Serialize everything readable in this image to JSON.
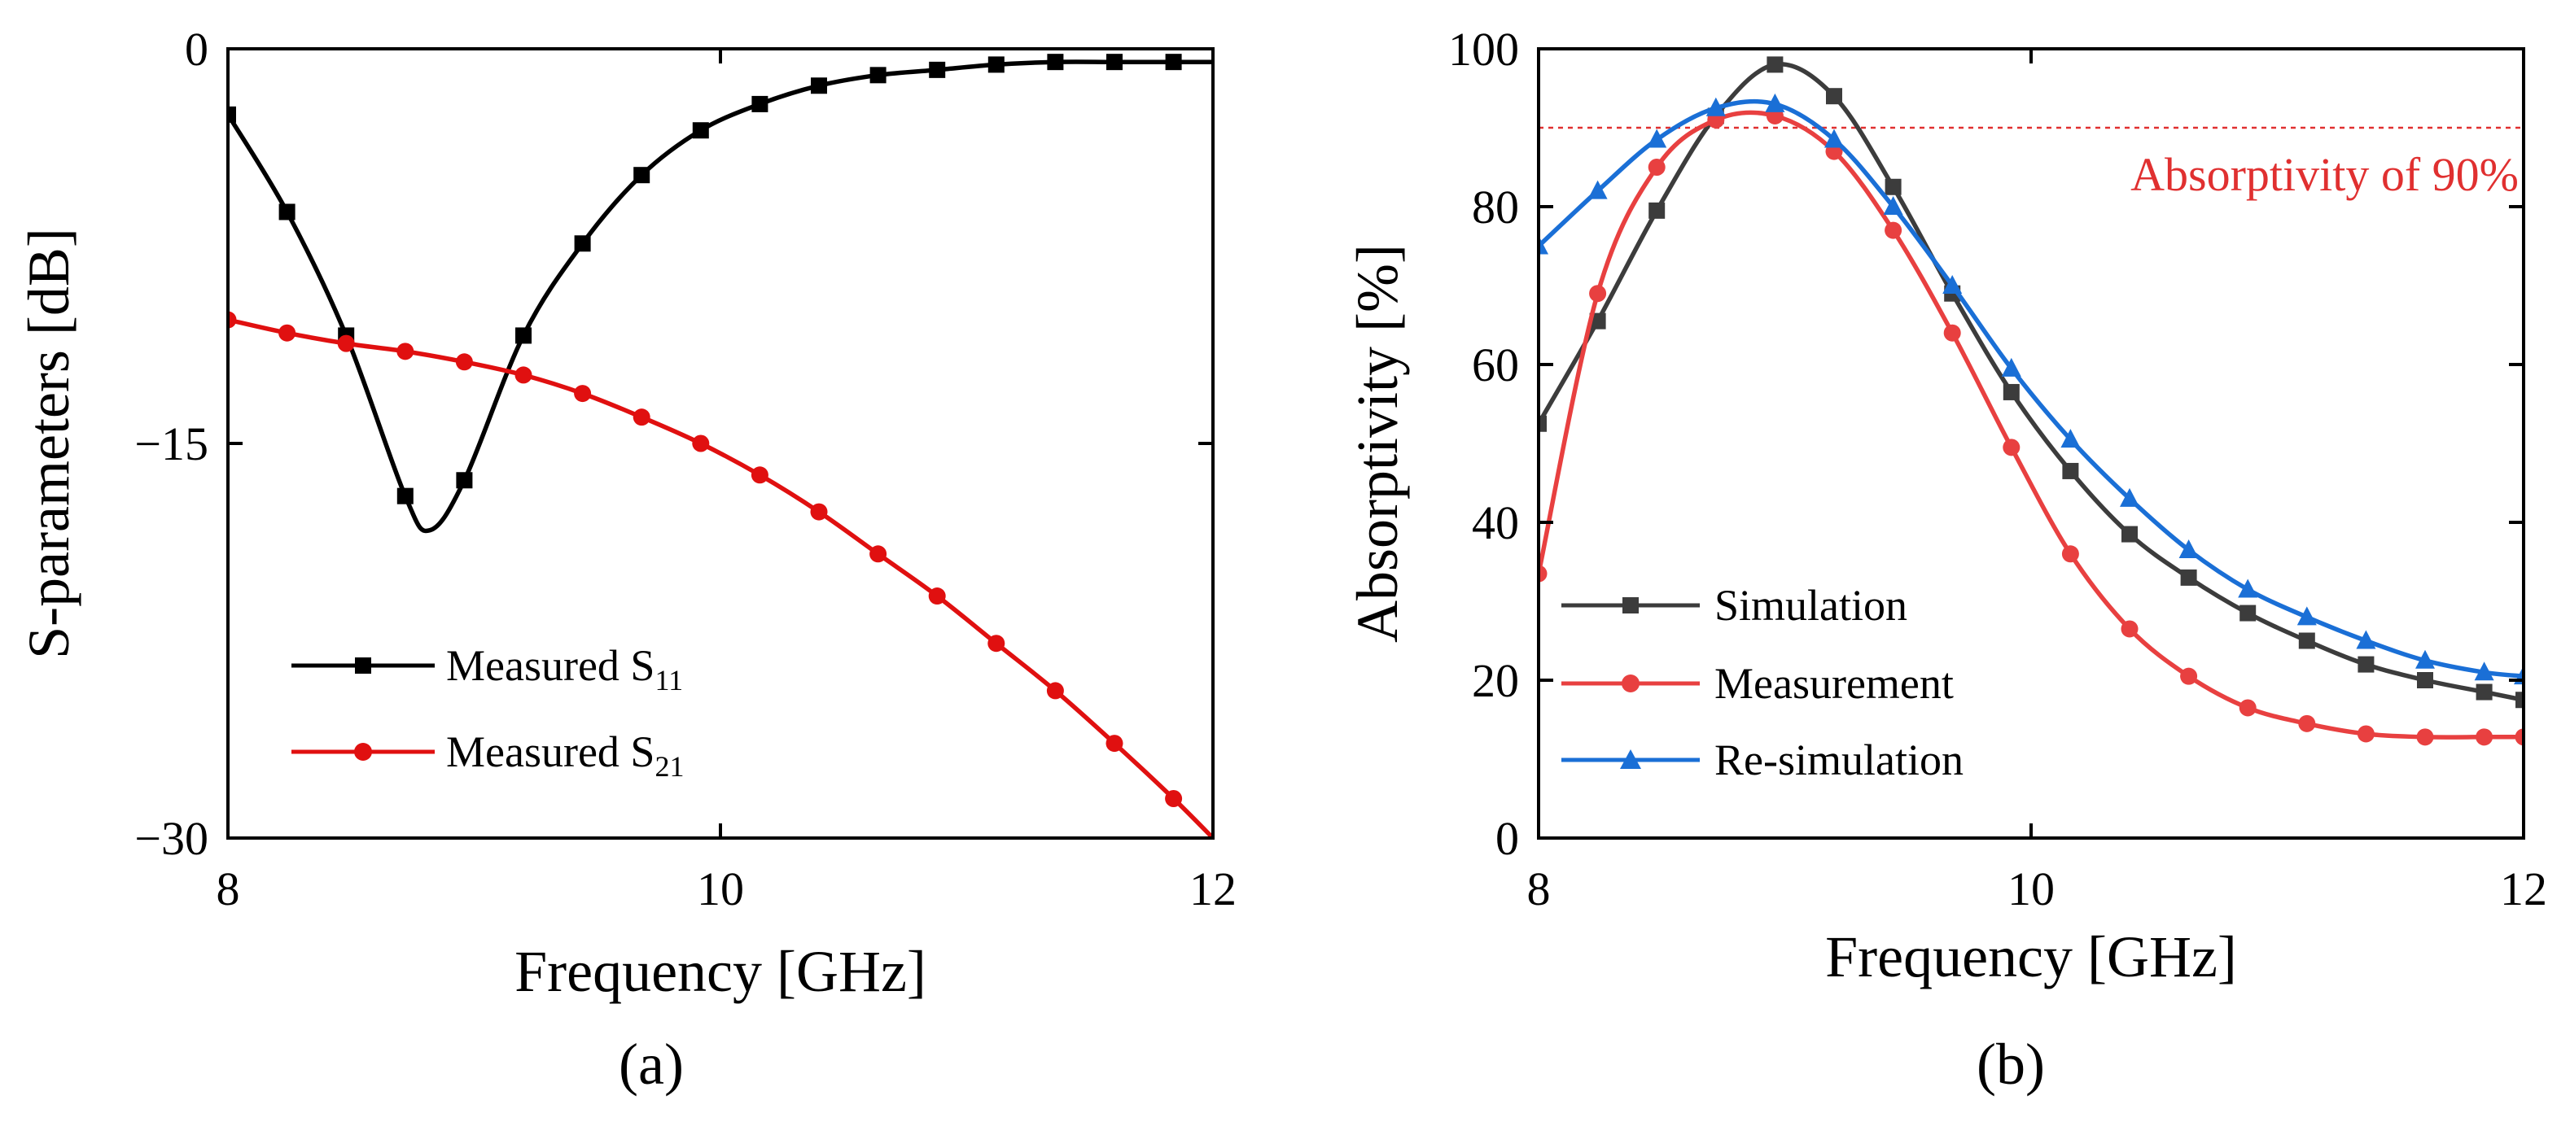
{
  "figure": {
    "panel_a_label": "(a)",
    "panel_b_label": "(b)"
  },
  "chart_data": [
    {
      "type": "line",
      "panel": "(a)",
      "title": "",
      "xlabel": "Frequency [GHz]",
      "ylabel": "S-parameters [dB]",
      "xlim": [
        8,
        12
      ],
      "ylim": [
        -30,
        0
      ],
      "xticks": [
        8,
        10,
        12
      ],
      "xtick_labels": [
        "8",
        "10",
        "12"
      ],
      "yticks": [
        0,
        -15,
        -30
      ],
      "ytick_labels": [
        "0",
        "−15",
        "−30"
      ],
      "legend_position": "bottom-left",
      "series": [
        {
          "name": "Measured S11",
          "legend_base": "Measured S",
          "legend_sub": "11",
          "color": "#000000",
          "marker": "square",
          "x": [
            8.0,
            8.24,
            8.48,
            8.72,
            8.96,
            9.2,
            9.44,
            9.68,
            9.92,
            10.16,
            10.4,
            10.64,
            10.88,
            11.12,
            11.36,
            11.6,
            11.84
          ],
          "y": [
            -2.5,
            -6.2,
            -10.9,
            -17.0,
            -16.4,
            -10.9,
            -7.4,
            -4.8,
            -3.1,
            -2.1,
            -1.4,
            -1.0,
            -0.8,
            -0.6,
            -0.5,
            -0.5,
            -0.5
          ],
          "curve_x": [
            8.0,
            8.24,
            8.48,
            8.72,
            8.82,
            8.96,
            9.2,
            9.44,
            9.68,
            9.92,
            10.16,
            10.4,
            10.64,
            10.88,
            11.12,
            11.36,
            11.6,
            11.84,
            12.0
          ],
          "curve_y": [
            -2.5,
            -6.2,
            -10.9,
            -17.0,
            -18.3,
            -16.4,
            -10.9,
            -7.4,
            -4.8,
            -3.1,
            -2.1,
            -1.4,
            -1.0,
            -0.8,
            -0.6,
            -0.5,
            -0.5,
            -0.5,
            -0.5
          ]
        },
        {
          "name": "Measured S21",
          "legend_base": "Measured S",
          "legend_sub": "21",
          "color": "#e01010",
          "marker": "circle",
          "x": [
            8.0,
            8.24,
            8.48,
            8.72,
            8.96,
            9.2,
            9.44,
            9.68,
            9.92,
            10.16,
            10.4,
            10.64,
            10.88,
            11.12,
            11.36,
            11.6,
            11.84
          ],
          "y": [
            -10.3,
            -10.8,
            -11.2,
            -11.5,
            -11.9,
            -12.4,
            -13.1,
            -14.0,
            -15.0,
            -16.2,
            -17.6,
            -19.2,
            -20.8,
            -22.6,
            -24.4,
            -26.4,
            -28.5
          ],
          "curve_x": [
            8.0,
            8.24,
            8.48,
            8.72,
            8.96,
            9.2,
            9.44,
            9.68,
            9.92,
            10.16,
            10.4,
            10.64,
            10.88,
            11.12,
            11.36,
            11.6,
            11.84,
            12.0
          ],
          "curve_y": [
            -10.3,
            -10.8,
            -11.2,
            -11.5,
            -11.9,
            -12.4,
            -13.1,
            -14.0,
            -15.0,
            -16.2,
            -17.6,
            -19.2,
            -20.8,
            -22.6,
            -24.4,
            -26.4,
            -28.5,
            -30.0
          ]
        }
      ]
    },
    {
      "type": "line",
      "panel": "(b)",
      "title": "",
      "xlabel": "Frequency [GHz]",
      "ylabel": "Absorptivity [%]",
      "xlim": [
        8,
        12
      ],
      "ylim": [
        0,
        100
      ],
      "xticks": [
        8,
        10,
        12
      ],
      "xtick_labels": [
        "8",
        "10",
        "12"
      ],
      "yticks": [
        0,
        20,
        40,
        60,
        80,
        100
      ],
      "ytick_labels": [
        "0",
        "20",
        "40",
        "60",
        "80",
        "100"
      ],
      "legend_position": "bottom-left",
      "reference_line": {
        "y": 90,
        "label": "Absorptivity of 90%",
        "color": "#e03030"
      },
      "series": [
        {
          "name": "Simulation",
          "color": "#3c3c3c",
          "marker": "square",
          "x": [
            8.0,
            8.24,
            8.48,
            8.72,
            8.96,
            9.2,
            9.44,
            9.68,
            9.92,
            10.16,
            10.4,
            10.64,
            10.88,
            11.12,
            11.36,
            11.6,
            11.84,
            12.0
          ],
          "y": [
            52.5,
            65.5,
            79.5,
            91.5,
            98.0,
            94.0,
            82.5,
            69.0,
            56.5,
            46.5,
            38.5,
            33.0,
            28.5,
            25.0,
            22.0,
            20.0,
            18.5,
            17.5
          ]
        },
        {
          "name": "Measurement",
          "color": "#e84040",
          "marker": "circle",
          "x": [
            8.0,
            8.24,
            8.48,
            8.72,
            8.96,
            9.2,
            9.44,
            9.68,
            9.92,
            10.16,
            10.4,
            10.64,
            10.88,
            11.12,
            11.36,
            11.6,
            11.84,
            12.0
          ],
          "y": [
            33.5,
            69.0,
            85.0,
            91.0,
            91.5,
            87.0,
            77.0,
            64.0,
            49.5,
            36.0,
            26.5,
            20.5,
            16.5,
            14.5,
            13.2,
            12.8,
            12.8,
            12.8
          ]
        },
        {
          "name": "Re-simulation",
          "color": "#1a6fd6",
          "marker": "triangle",
          "x": [
            8.0,
            8.24,
            8.48,
            8.72,
            8.96,
            9.2,
            9.44,
            9.68,
            9.92,
            10.16,
            10.4,
            10.64,
            10.88,
            11.12,
            11.36,
            11.6,
            11.84,
            12.0
          ],
          "y": [
            75.0,
            82.0,
            88.5,
            92.5,
            93.0,
            88.5,
            80.0,
            70.0,
            59.5,
            50.5,
            43.0,
            36.5,
            31.5,
            28.0,
            25.0,
            22.5,
            21.0,
            20.5
          ]
        }
      ]
    }
  ]
}
